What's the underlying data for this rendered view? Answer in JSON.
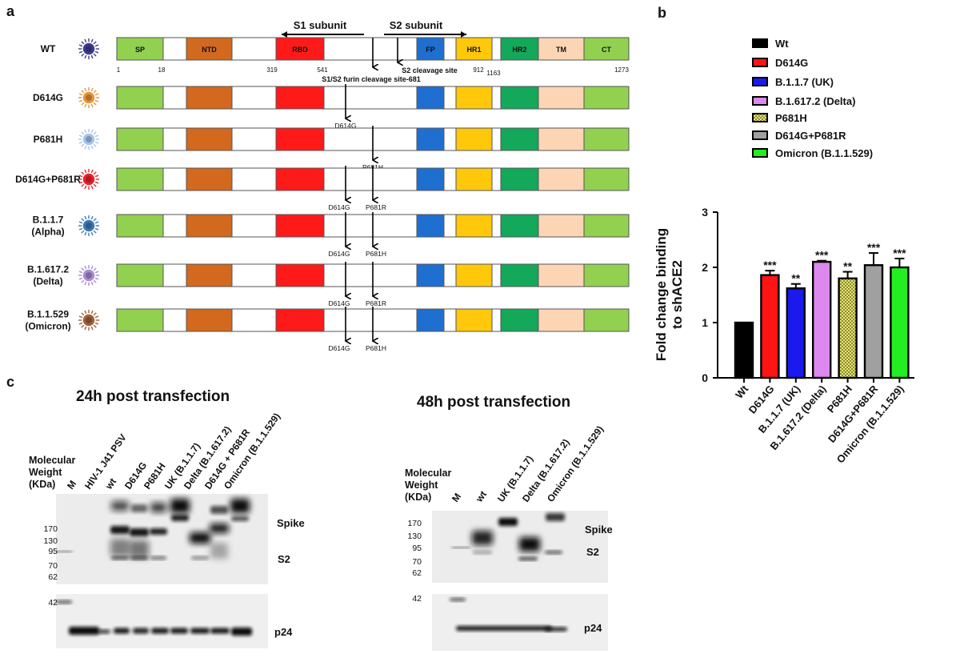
{
  "panel_labels": {
    "a": "a",
    "b": "b",
    "c": "c"
  },
  "panel_a": {
    "s1_label": "S1 subunit",
    "s2_label": "S2 subunit",
    "domains": [
      {
        "name": "SP",
        "color": "#92d050"
      },
      {
        "name": "",
        "color": "#ffffff"
      },
      {
        "name": "NTD",
        "color": "#d2691e"
      },
      {
        "name": "",
        "color": "#ffffff"
      },
      {
        "name": "RBD",
        "color": "#ff1a1a"
      },
      {
        "name": "",
        "color": "#ffffff"
      },
      {
        "name": "FP",
        "color": "#1f6fd1"
      },
      {
        "name": "",
        "color": "#ffffff"
      },
      {
        "name": "HR1",
        "color": "#ffc80a"
      },
      {
        "name": "",
        "color": "#ffffff"
      },
      {
        "name": "HR2",
        "color": "#14a85a"
      },
      {
        "name": "TM",
        "color": "#fcd5b5"
      },
      {
        "name": "CT",
        "color": "#92d050"
      }
    ],
    "positions": [
      "1",
      "18",
      "319",
      "541",
      "912",
      "1163",
      "1273"
    ],
    "s2_cleavage_label": "S2 cleavage site",
    "furin_label": "S1/S2 furin cleavage site-681",
    "variants": [
      {
        "label": [
          "WT"
        ],
        "virus_color": "#3b3b8f",
        "mutations": []
      },
      {
        "label": [
          "D614G"
        ],
        "virus_color": "#e8953a",
        "mutations": [
          "D614G"
        ]
      },
      {
        "label": [
          "P681H"
        ],
        "virus_color": "#a9c4ea",
        "mutations": [
          "P681H"
        ]
      },
      {
        "label": [
          "D614G+P681R"
        ],
        "virus_color": "#e8222a",
        "mutations": [
          "D614G",
          "P681R"
        ]
      },
      {
        "label": [
          "B.1.1.7",
          "(Alpha)"
        ],
        "virus_color": "#3d78b8",
        "mutations": [
          "D614G",
          "P681H"
        ]
      },
      {
        "label": [
          "B.1.617.2",
          "(Delta)"
        ],
        "virus_color": "#a98ad4",
        "mutations": [
          "D614G",
          "P681R"
        ]
      },
      {
        "label": [
          "B.1.1.529",
          "(Omicron)"
        ],
        "virus_color": "#a0603a",
        "mutations": [
          "D614G",
          "P681H"
        ]
      }
    ]
  },
  "chart_data": {
    "type": "bar",
    "categories": [
      "Wt",
      "D614G",
      "B.1.1.7 (UK)",
      "B.1.617.2 (Delta)",
      "P681H",
      "D614G+P681R",
      "Omicron (B.1.1.529)"
    ],
    "values": [
      1.0,
      1.86,
      1.62,
      2.1,
      1.8,
      2.04,
      2.0
    ],
    "errors": [
      0,
      0.08,
      0.08,
      0.02,
      0.12,
      0.22,
      0.16
    ],
    "significance": [
      "",
      "***",
      "**",
      "***",
      "**",
      "***",
      "***"
    ],
    "colors": [
      "#000000",
      "#ff1414",
      "#1a1aee",
      "#dd88ee",
      "#e0e070",
      "#a0a0a0",
      "#22ee22"
    ],
    "patterns": [
      "solid",
      "solid",
      "solid",
      "solid",
      "checker",
      "solid",
      "solid"
    ],
    "ylabel": [
      "Fold change binding",
      "to shACE2"
    ],
    "ylim": [
      0,
      3
    ],
    "yticks": [
      "0",
      "1",
      "2",
      "3"
    ],
    "legend_position": "top",
    "grid": false
  },
  "panel_c": {
    "left": {
      "title": "24h post transfection",
      "mw_header": [
        "Molecular",
        "Weight",
        "(KDa)"
      ],
      "lanes": [
        "M",
        "HIV-1 J41 PSV",
        "wt",
        "D614G",
        "P681H",
        "UK (B.1.1.7)",
        "Delta (B.1.617.2)",
        "D614G + P681R",
        "Omicron (B.1.1.529)"
      ],
      "mw_markers": [
        "170",
        "130",
        "95",
        "70",
        "62",
        "42"
      ],
      "band_labels": [
        "Spike",
        "S2",
        "p24"
      ]
    },
    "right": {
      "title": "48h post transfection",
      "mw_header": [
        "Molecular",
        "Weight",
        "(KDa)"
      ],
      "lanes": [
        "M",
        "wt",
        "UK (B.1.1.7)",
        "Delta (B.1.617.2)",
        "Omicron (B.1.1.529)"
      ],
      "mw_markers": [
        "170",
        "130",
        "95",
        "70",
        "62",
        "42"
      ],
      "band_labels": [
        "Spike",
        "S2",
        "p24"
      ]
    }
  }
}
